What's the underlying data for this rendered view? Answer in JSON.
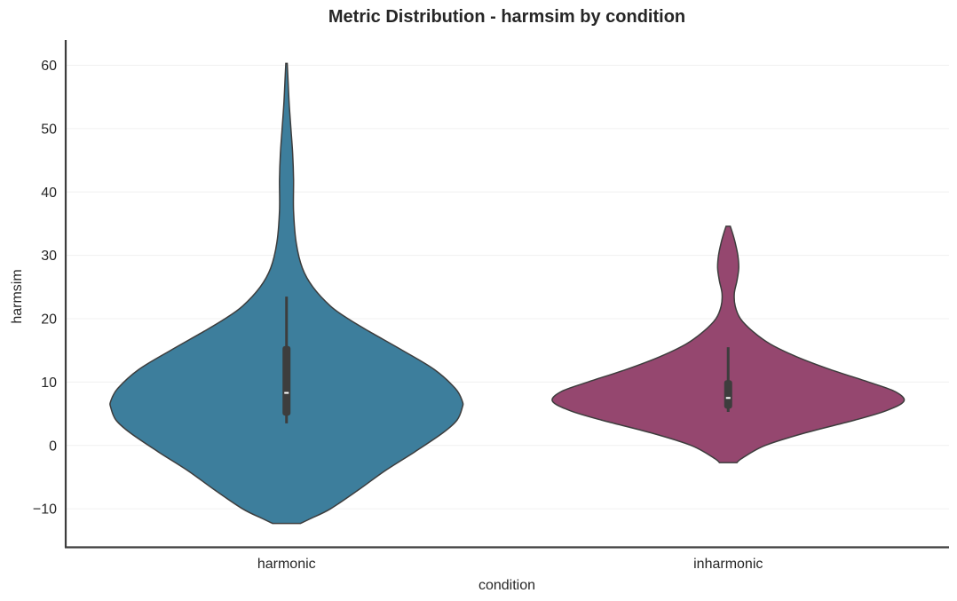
{
  "chart_data": {
    "type": "violin",
    "title": "Metric Distribution - harmsim by condition",
    "xlabel": "condition",
    "ylabel": "harmsim",
    "ylim": [
      -16,
      64
    ],
    "yticks": [
      -10,
      0,
      10,
      20,
      30,
      40,
      50,
      60
    ],
    "ytick_labels": [
      "−10",
      "0",
      "10",
      "20",
      "30",
      "40",
      "50",
      "60"
    ],
    "grid": true,
    "legend": "none",
    "categories": [
      "harmonic",
      "inharmonic"
    ],
    "series": [
      {
        "category": "harmonic",
        "color": "#3d7e9c",
        "min": -12.3,
        "max": 60.3,
        "whisker_low": 3.5,
        "q1": 4.7,
        "median": 8.3,
        "q3": 15.7,
        "whisker_high": 23.5,
        "density": [
          [
            -12.3,
            0.08
          ],
          [
            -11.5,
            0.14
          ],
          [
            -10,
            0.25
          ],
          [
            -7,
            0.41
          ],
          [
            -4,
            0.56
          ],
          [
            -1,
            0.73
          ],
          [
            2,
            0.89
          ],
          [
            4,
            0.97
          ],
          [
            6,
            1.0
          ],
          [
            7,
            1.0
          ],
          [
            9,
            0.96
          ],
          [
            12,
            0.84
          ],
          [
            15,
            0.66
          ],
          [
            18,
            0.47
          ],
          [
            20,
            0.35
          ],
          [
            22,
            0.25
          ],
          [
            25,
            0.15
          ],
          [
            28,
            0.09
          ],
          [
            32,
            0.055
          ],
          [
            37,
            0.04
          ],
          [
            42,
            0.04
          ],
          [
            46,
            0.035
          ],
          [
            50,
            0.025
          ],
          [
            54,
            0.015
          ],
          [
            58,
            0.008
          ],
          [
            60.3,
            0.004
          ]
        ]
      },
      {
        "category": "inharmonic",
        "color": "#95476f",
        "min": -2.7,
        "max": 34.6,
        "whisker_low": 5.3,
        "q1": 5.8,
        "median": 7.5,
        "q3": 10.3,
        "whisker_high": 15.5,
        "density": [
          [
            -2.7,
            0.05
          ],
          [
            -2.0,
            0.08
          ],
          [
            0,
            0.21
          ],
          [
            2,
            0.44
          ],
          [
            4,
            0.72
          ],
          [
            5.5,
            0.9
          ],
          [
            7,
            1.0
          ],
          [
            8.5,
            0.95
          ],
          [
            10,
            0.8
          ],
          [
            12,
            0.58
          ],
          [
            14,
            0.39
          ],
          [
            16,
            0.24
          ],
          [
            18,
            0.14
          ],
          [
            20,
            0.07
          ],
          [
            22,
            0.04
          ],
          [
            24,
            0.035
          ],
          [
            26,
            0.05
          ],
          [
            28,
            0.06
          ],
          [
            30,
            0.055
          ],
          [
            32,
            0.04
          ],
          [
            33.5,
            0.025
          ],
          [
            34.6,
            0.012
          ]
        ]
      }
    ]
  }
}
